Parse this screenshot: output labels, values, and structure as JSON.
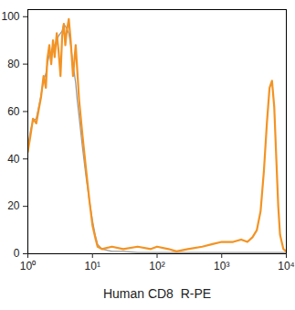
{
  "chart_data": {
    "type": "line",
    "x_label": "Human CD8  R-PE",
    "log": "x",
    "xlim": [
      1,
      10000
    ],
    "xticks": [
      {
        "value": 1,
        "label": "10⁰"
      },
      {
        "value": 10,
        "label": "10¹"
      },
      {
        "value": 100,
        "label": "10²"
      },
      {
        "value": 1000,
        "label": "10³"
      },
      {
        "value": 10000,
        "label": "10⁴"
      }
    ],
    "ylim": [
      0,
      103
    ],
    "yticks": [
      0,
      20,
      40,
      60,
      80,
      100
    ],
    "grid": false,
    "x": [
      1,
      1.1,
      1.2,
      1.35,
      1.5,
      1.6,
      1.75,
      1.9,
      2,
      2.15,
      2.3,
      2.45,
      2.6,
      2.8,
      3,
      3.2,
      3.4,
      3.6,
      3.8,
      4,
      4.3,
      4.6,
      5,
      5.5,
      5.8,
      6.2,
      7,
      8,
      9,
      10,
      11,
      12,
      14,
      20,
      30,
      50,
      80,
      100,
      150,
      200,
      300,
      500,
      700,
      1000,
      1500,
      2000,
      2500,
      3000,
      3500,
      4000,
      4500,
      5000,
      5500,
      6000,
      6500,
      7000,
      7500,
      8000,
      9000,
      10000
    ],
    "series": [
      {
        "color": "#9a9a9a",
        "line_style": "solid",
        "values": [
          45,
          52,
          56,
          57,
          63,
          67,
          73,
          76,
          80,
          84,
          85,
          88,
          88,
          90,
          92,
          93,
          94,
          97,
          96,
          95,
          93,
          88,
          80,
          72,
          65,
          58,
          45,
          32,
          22,
          14,
          8,
          4,
          2,
          1,
          1,
          0.5,
          0.5,
          0.5,
          0.5,
          0.5,
          0.5,
          0.5,
          0.5,
          0.5,
          0.5,
          0.5,
          0.5,
          0.5,
          0.5,
          0.5,
          0.5,
          0.5,
          0.5,
          0.5,
          0.5,
          0.5,
          0.5,
          0.5,
          0.5,
          0.5
        ]
      },
      {
        "color": "#f39323",
        "line_style": "solid",
        "values": [
          43,
          50,
          57,
          55,
          62,
          66,
          75,
          70,
          82,
          88,
          80,
          90,
          83,
          93,
          85,
          75,
          92,
          97,
          88,
          94,
          99,
          90,
          75,
          88,
          78,
          65,
          50,
          35,
          22,
          12,
          7,
          3,
          2,
          3,
          2,
          3,
          2,
          3,
          2,
          1,
          2,
          3,
          4,
          5,
          5,
          6,
          5,
          7,
          10,
          18,
          35,
          55,
          70,
          73,
          62,
          40,
          20,
          8,
          2,
          1
        ]
      }
    ]
  }
}
